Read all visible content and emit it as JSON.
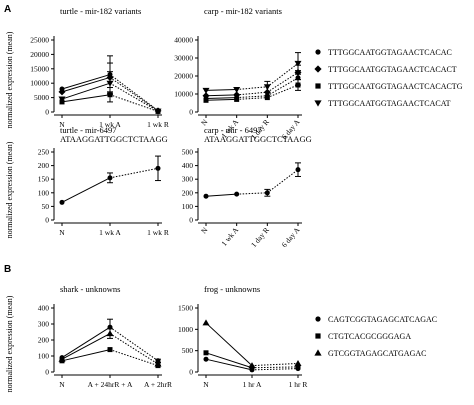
{
  "panel_letters": [
    "A",
    "B"
  ],
  "legend_top": [
    {
      "marker": "circle",
      "label": "TTTGGCAATGGTAGAACTCACAC"
    },
    {
      "marker": "diamond",
      "label": "TTTGGCAATGGTAGAACTCACACT"
    },
    {
      "marker": "square",
      "label": "TTTGGCAATGGTAGAACTCACACTG"
    },
    {
      "marker": "triangle-down",
      "label": "TTTGGCAATGGTAGAACTCACAT"
    }
  ],
  "legend_bottom": [
    {
      "marker": "circle",
      "label": "CAGTCGGTAGAGCATCAGAC"
    },
    {
      "marker": "square",
      "label": "CTGTCACGCGGGAGA"
    },
    {
      "marker": "triangle-up",
      "label": "GTCGGTAGAGCATGAGAC"
    }
  ],
  "chart_data": [
    {
      "type": "line",
      "title": "turtle - mir-182 variants",
      "ylabel": "normalized expression (mean)",
      "xlabel": "",
      "categories": [
        "N",
        "1 wk A",
        "1 wk R"
      ],
      "yticks": [
        "0",
        "5000",
        "10000",
        "15000",
        "20000",
        "25000"
      ],
      "ylim": [
        0,
        25000
      ],
      "series": [
        {
          "marker": "circle",
          "values": [
            8000,
            13000,
            500
          ],
          "errors": [
            0,
            6500,
            0
          ]
        },
        {
          "marker": "diamond",
          "values": [
            7000,
            12000,
            400
          ],
          "errors": [
            0,
            5000,
            0
          ]
        },
        {
          "marker": "square",
          "values": [
            3500,
            6000,
            200
          ],
          "errors": [
            0,
            2500,
            0
          ]
        },
        {
          "marker": "triangle-down",
          "values": [
            4500,
            10000,
            300
          ],
          "errors": [
            0,
            4000,
            0
          ]
        }
      ]
    },
    {
      "type": "line",
      "title": "carp - mir-182 variants",
      "ylabel": "",
      "xlabel": "",
      "categories": [
        "N",
        "1 wk A",
        "1 day R",
        "6 day A"
      ],
      "yticks": [
        "0",
        "10000",
        "20000",
        "30000",
        "40000"
      ],
      "ylim": [
        0,
        40000
      ],
      "series": [
        {
          "marker": "circle",
          "values": [
            7500,
            8000,
            9000,
            19000
          ],
          "errors": [
            0,
            0,
            0,
            4000
          ]
        },
        {
          "marker": "diamond",
          "values": [
            9000,
            9500,
            11000,
            22000
          ],
          "errors": [
            0,
            0,
            0,
            4000
          ]
        },
        {
          "marker": "square",
          "values": [
            6500,
            7000,
            8000,
            15000
          ],
          "errors": [
            0,
            0,
            0,
            3000
          ]
        },
        {
          "marker": "triangle-down",
          "values": [
            12000,
            12500,
            14000,
            27000
          ],
          "errors": [
            0,
            0,
            3000,
            6000
          ]
        }
      ]
    },
    {
      "type": "line",
      "title": "turtle - mir-6497",
      "subtitle": "ATAAGGATTGGCTCTAAGG",
      "ylabel": "normalized expression (mean)",
      "xlabel": "",
      "categories": [
        "N",
        "1 wk A",
        "1 wk R"
      ],
      "yticks": [
        "0",
        "50",
        "100",
        "150",
        "200",
        "250"
      ],
      "ylim": [
        0,
        250
      ],
      "series": [
        {
          "marker": "circle",
          "values": [
            65,
            155,
            190
          ],
          "errors": [
            0,
            18,
            45
          ]
        }
      ]
    },
    {
      "type": "line",
      "title": "carp - mir - 6497",
      "subtitle": "ATAAGGATTGGCTCTAAGG",
      "ylabel": "",
      "xlabel": "",
      "categories": [
        "N",
        "1 wk A",
        "1 day R",
        "6 day A"
      ],
      "yticks": [
        "0",
        "100",
        "200",
        "300",
        "400",
        "500"
      ],
      "ylim": [
        0,
        500
      ],
      "series": [
        {
          "marker": "circle",
          "values": [
            175,
            190,
            200,
            370
          ],
          "errors": [
            0,
            0,
            25,
            50
          ]
        }
      ]
    },
    {
      "type": "line",
      "title": "shark - unknowns",
      "ylabel": "normalized expression (mean)",
      "xlabel": "",
      "categories": [
        "N",
        "A + 24hrR + A",
        "A + 2hrR"
      ],
      "yticks": [
        "0",
        "100",
        "200",
        "300",
        "400"
      ],
      "ylim": [
        0,
        400
      ],
      "series": [
        {
          "marker": "circle",
          "values": [
            90,
            280,
            70
          ],
          "errors": [
            0,
            50,
            10
          ]
        },
        {
          "marker": "square",
          "values": [
            70,
            140,
            40
          ],
          "errors": [
            0,
            0,
            0
          ]
        },
        {
          "marker": "triangle-up",
          "values": [
            80,
            240,
            50
          ],
          "errors": [
            0,
            30,
            10
          ]
        }
      ]
    },
    {
      "type": "line",
      "title": "frog - unknowns",
      "ylabel": "",
      "xlabel": "",
      "categories": [
        "N",
        "1 hr A",
        "1 hr R"
      ],
      "yticks": [
        "0",
        "500",
        "1000",
        "1500"
      ],
      "ylim": [
        0,
        1500
      ],
      "series": [
        {
          "marker": "circle",
          "values": [
            300,
            50,
            80
          ],
          "errors": [
            0,
            0,
            0
          ]
        },
        {
          "marker": "square",
          "values": [
            450,
            100,
            120
          ],
          "errors": [
            0,
            0,
            0
          ]
        },
        {
          "marker": "triangle-up",
          "values": [
            1150,
            150,
            200
          ],
          "errors": [
            0,
            0,
            0
          ]
        }
      ]
    }
  ]
}
